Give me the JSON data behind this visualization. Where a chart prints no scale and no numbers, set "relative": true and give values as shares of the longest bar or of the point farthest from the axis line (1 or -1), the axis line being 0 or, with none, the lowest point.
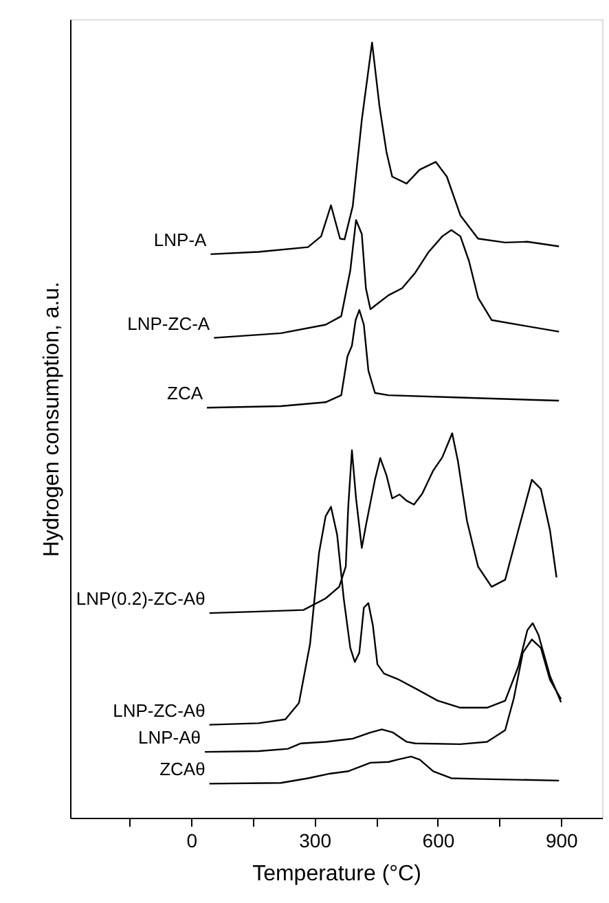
{
  "chart_data": {
    "type": "line",
    "relative": true,
    "xlabel": "Temperature (°C)",
    "ylabel": "Hydrogen consumption, a.u.",
    "xlim": [
      -295,
      1000
    ],
    "xticks": [
      {
        "value": -150,
        "label": null
      },
      0,
      {
        "value": 150,
        "label": null
      },
      300,
      {
        "value": 450,
        "label": null
      },
      600,
      {
        "value": 750,
        "label": null
      },
      900
    ],
    "grid": false,
    "marker": "none",
    "line_style": "solid",
    "series": [
      {
        "name": "LNP-A",
        "color": "#000000",
        "x": [
          47,
          164,
          284,
          316,
          340,
          362,
          373,
          393,
          415,
          440,
          458,
          475,
          489,
          524,
          556,
          595,
          622,
          655,
          698,
          764,
          818,
          895
        ],
        "values": [
          0.727,
          0.73,
          0.736,
          0.75,
          0.79,
          0.747,
          0.746,
          0.789,
          0.9,
          1.0,
          0.918,
          0.859,
          0.827,
          0.818,
          0.836,
          0.846,
          0.827,
          0.777,
          0.747,
          0.742,
          0.743,
          0.737
        ]
      },
      {
        "name": "LNP-ZC-A",
        "color": "#000000",
        "x": [
          55,
          218,
          327,
          365,
          387,
          401,
          415,
          425,
          436,
          458,
          480,
          513,
          545,
          578,
          611,
          633,
          655,
          676,
          698,
          731,
          807,
          895
        ],
        "values": [
          0.619,
          0.625,
          0.636,
          0.647,
          0.706,
          0.771,
          0.753,
          0.683,
          0.656,
          0.665,
          0.674,
          0.683,
          0.703,
          0.73,
          0.75,
          0.758,
          0.75,
          0.718,
          0.671,
          0.642,
          0.635,
          0.627
        ]
      },
      {
        "name": "ZCA",
        "color": "#000000",
        "x": [
          38,
          218,
          327,
          365,
          380,
          391,
          400,
          409,
          420,
          431,
          447,
          480,
          655,
          895
        ],
        "values": [
          0.529,
          0.531,
          0.536,
          0.545,
          0.595,
          0.609,
          0.642,
          0.655,
          0.636,
          0.577,
          0.548,
          0.545,
          0.542,
          0.538
        ]
      },
      {
        "name": "LNP(0.2)-ZC-Aθ",
        "color": "#000000",
        "x": [
          44,
          164,
          273,
          327,
          360,
          376,
          382,
          391,
          401,
          415,
          425,
          447,
          460,
          475,
          489,
          507,
          524,
          542,
          562,
          589,
          611,
          635,
          649,
          671,
          698,
          731,
          764,
          796,
          829,
          851,
          873,
          889
        ],
        "values": [
          0.264,
          0.266,
          0.268,
          0.283,
          0.298,
          0.324,
          0.401,
          0.474,
          0.412,
          0.348,
          0.377,
          0.436,
          0.464,
          0.442,
          0.412,
          0.417,
          0.409,
          0.404,
          0.418,
          0.448,
          0.465,
          0.496,
          0.46,
          0.383,
          0.324,
          0.298,
          0.307,
          0.371,
          0.436,
          0.424,
          0.371,
          0.31
        ]
      },
      {
        "name": "LNP-ZC-Aθ",
        "color": "#000000",
        "x": [
          44,
          164,
          229,
          262,
          289,
          311,
          327,
          340,
          355,
          371,
          387,
          398,
          409,
          420,
          431,
          442,
          453,
          469,
          502,
          545,
          600,
          655,
          720,
          764,
          796,
          818,
          831,
          845,
          873,
          900
        ],
        "values": [
          0.12,
          0.122,
          0.127,
          0.148,
          0.224,
          0.342,
          0.389,
          0.401,
          0.365,
          0.283,
          0.219,
          0.201,
          0.213,
          0.271,
          0.277,
          0.248,
          0.198,
          0.186,
          0.179,
          0.167,
          0.151,
          0.142,
          0.142,
          0.151,
          0.195,
          0.242,
          0.251,
          0.236,
          0.183,
          0.149
        ]
      },
      {
        "name": "LNP-Aθ",
        "color": "#000000",
        "x": [
          33,
          164,
          235,
          267,
          327,
          393,
          436,
          464,
          491,
          524,
          545,
          655,
          720,
          764,
          785,
          807,
          829,
          851,
          873,
          900
        ],
        "values": [
          0.085,
          0.086,
          0.089,
          0.096,
          0.098,
          0.102,
          0.11,
          0.114,
          0.11,
          0.098,
          0.096,
          0.095,
          0.098,
          0.113,
          0.154,
          0.213,
          0.23,
          0.219,
          0.178,
          0.153
        ]
      },
      {
        "name": "ZCAθ",
        "color": "#000000",
        "x": [
          44,
          218,
          284,
          338,
          382,
          436,
          480,
          502,
          535,
          556,
          589,
          633,
          709,
          895
        ],
        "values": [
          0.044,
          0.045,
          0.051,
          0.057,
          0.06,
          0.071,
          0.072,
          0.075,
          0.079,
          0.075,
          0.06,
          0.051,
          0.05,
          0.048
        ]
      }
    ]
  }
}
